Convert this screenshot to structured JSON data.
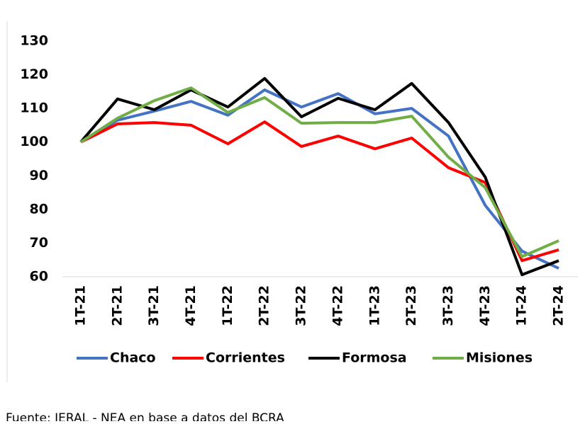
{
  "chart_data": {
    "type": "line",
    "categories": [
      "1T-21",
      "2T-21",
      "3T-21",
      "4T-21",
      "1T-22",
      "2T-22",
      "3T-22",
      "4T-22",
      "1T-23",
      "2T-23",
      "3T-23",
      "4T-23",
      "1T-24",
      "2T-24"
    ],
    "series": [
      {
        "name": "Chaco",
        "color": "#4472c4",
        "values": [
          100,
          106.5,
          109.2,
          112.1,
          108,
          115.5,
          110.4,
          114.4,
          108.4,
          110,
          101.8,
          81.2,
          67.6,
          62.5
        ]
      },
      {
        "name": "Corrientes",
        "color": "#ff0000",
        "values": [
          100,
          105.4,
          105.8,
          105,
          99.5,
          106,
          98.7,
          101.8,
          98,
          101.2,
          92.4,
          88,
          64.8,
          68
        ]
      },
      {
        "name": "Formosa",
        "color": "#000000",
        "values": [
          100,
          112.8,
          109.6,
          115.5,
          110.4,
          118.9,
          107.5,
          113,
          109.6,
          117.4,
          105.8,
          89.6,
          60.6,
          64.8
        ]
      },
      {
        "name": "Misiones",
        "color": "#70ad47",
        "values": [
          100,
          107.1,
          112.3,
          116.1,
          108.8,
          113.2,
          105.6,
          105.8,
          105.8,
          107.7,
          95.5,
          86.5,
          66,
          70.7
        ]
      }
    ],
    "ylim": [
      60,
      130
    ],
    "yticks": [
      60,
      70,
      80,
      90,
      100,
      110,
      120,
      130
    ],
    "source": "Fuente: IERAL - NEA en base a datos del BCRA"
  }
}
